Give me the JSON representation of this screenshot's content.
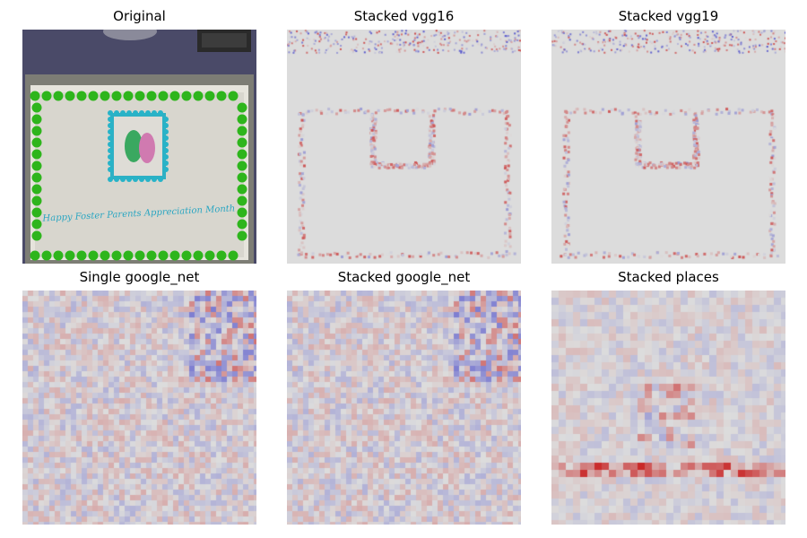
{
  "figure": {
    "panels": [
      {
        "title": "Original",
        "kind": "photo"
      },
      {
        "title": "Stacked vgg16",
        "kind": "heatmap-fine"
      },
      {
        "title": "Stacked vgg19",
        "kind": "heatmap-fine"
      },
      {
        "title": "Single google_net",
        "kind": "heatmap-noisy"
      },
      {
        "title": "Stacked google_net",
        "kind": "heatmap-noisy"
      },
      {
        "title": "Stacked places",
        "kind": "heatmap-coarse"
      }
    ],
    "colormap": {
      "negative": "#3030c8",
      "neutral": "#dcdcdc",
      "positive": "#c81e1e"
    },
    "photo_colors": {
      "table": "#4a4a68",
      "tray": "#7d7d75",
      "frosting": "#d8d6ce",
      "border": "#2eb51c",
      "picture_border": "#27b3c8",
      "script": "#2aa6c2"
    },
    "cake_inscription": "Happy Foster Parents Appreciation Month"
  }
}
